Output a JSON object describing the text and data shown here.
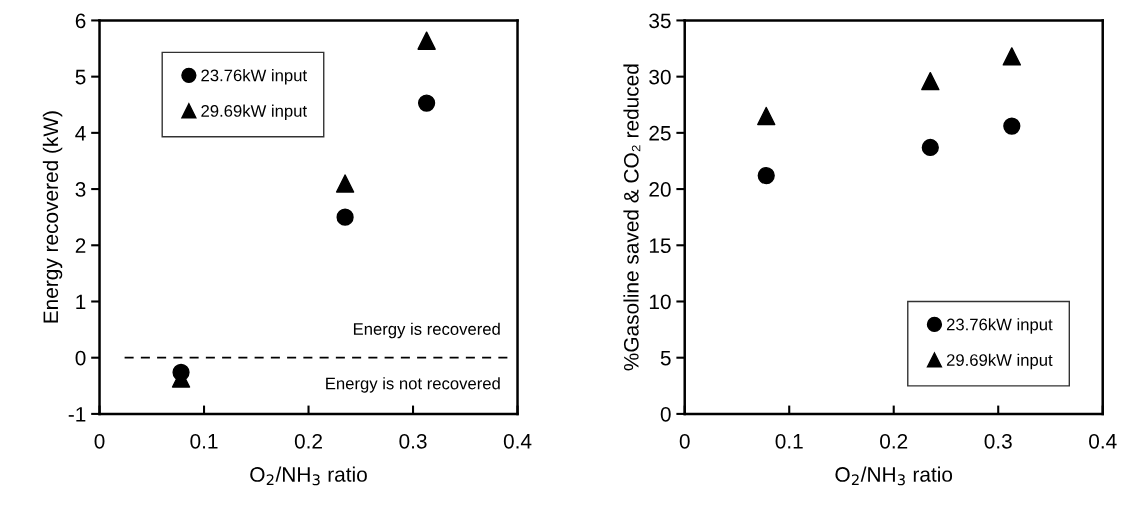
{
  "chart_data": [
    {
      "type": "scatter",
      "xlabel": "O$_{2}$/NH$_{3}$ ratio",
      "ylabel": "Energy recovered (kW)",
      "series": [
        {
          "name": "23.76kW input",
          "color": "#000000",
          "marker": "circle",
          "x": [
            0.078,
            0.235,
            0.313
          ],
          "values": [
            -0.26,
            2.5,
            4.53
          ]
        },
        {
          "name": "29.69kW input",
          "color": "#000000",
          "marker": "triangle",
          "x": [
            0.078,
            0.235,
            0.313
          ],
          "values": [
            -0.37,
            3.1,
            5.64
          ]
        }
      ],
      "xlim": [
        0,
        0.4
      ],
      "xticks": [
        0,
        0.1,
        0.2,
        0.3,
        0.4
      ],
      "ylim": [
        -1,
        6
      ],
      "yticks": [
        -1,
        0,
        1,
        2,
        3,
        4,
        5,
        6
      ],
      "ref_lines": [
        {
          "axis": "y",
          "value": 0,
          "line_style": "dashed",
          "color": "#000000"
        }
      ],
      "annotations": [
        "Energy is recovered",
        "Energy is not recovered"
      ],
      "legend": "top left",
      "grid": false
    },
    {
      "type": "scatter",
      "xlabel": "O$_{2}$/NH$_{3}$ ratio",
      "ylabel": "%Gasoline saved & CO₂ reduced",
      "series": [
        {
          "name": "23.76kW input",
          "color": "#000000",
          "marker": "circle",
          "x": [
            0.078,
            0.235,
            0.313
          ],
          "values": [
            21.2,
            23.7,
            25.6
          ]
        },
        {
          "name": "29.69kW input",
          "color": "#000000",
          "marker": "triangle",
          "x": [
            0.078,
            0.235,
            0.313
          ],
          "values": [
            26.5,
            29.6,
            31.8
          ]
        }
      ],
      "xlim": [
        0,
        0.4
      ],
      "xticks": [
        0,
        0.1,
        0.2,
        0.3,
        0.4
      ],
      "ylim": [
        0,
        35
      ],
      "yticks": [
        0,
        5,
        10,
        15,
        20,
        25,
        30,
        35
      ],
      "legend": "bottom right",
      "grid": false
    }
  ]
}
